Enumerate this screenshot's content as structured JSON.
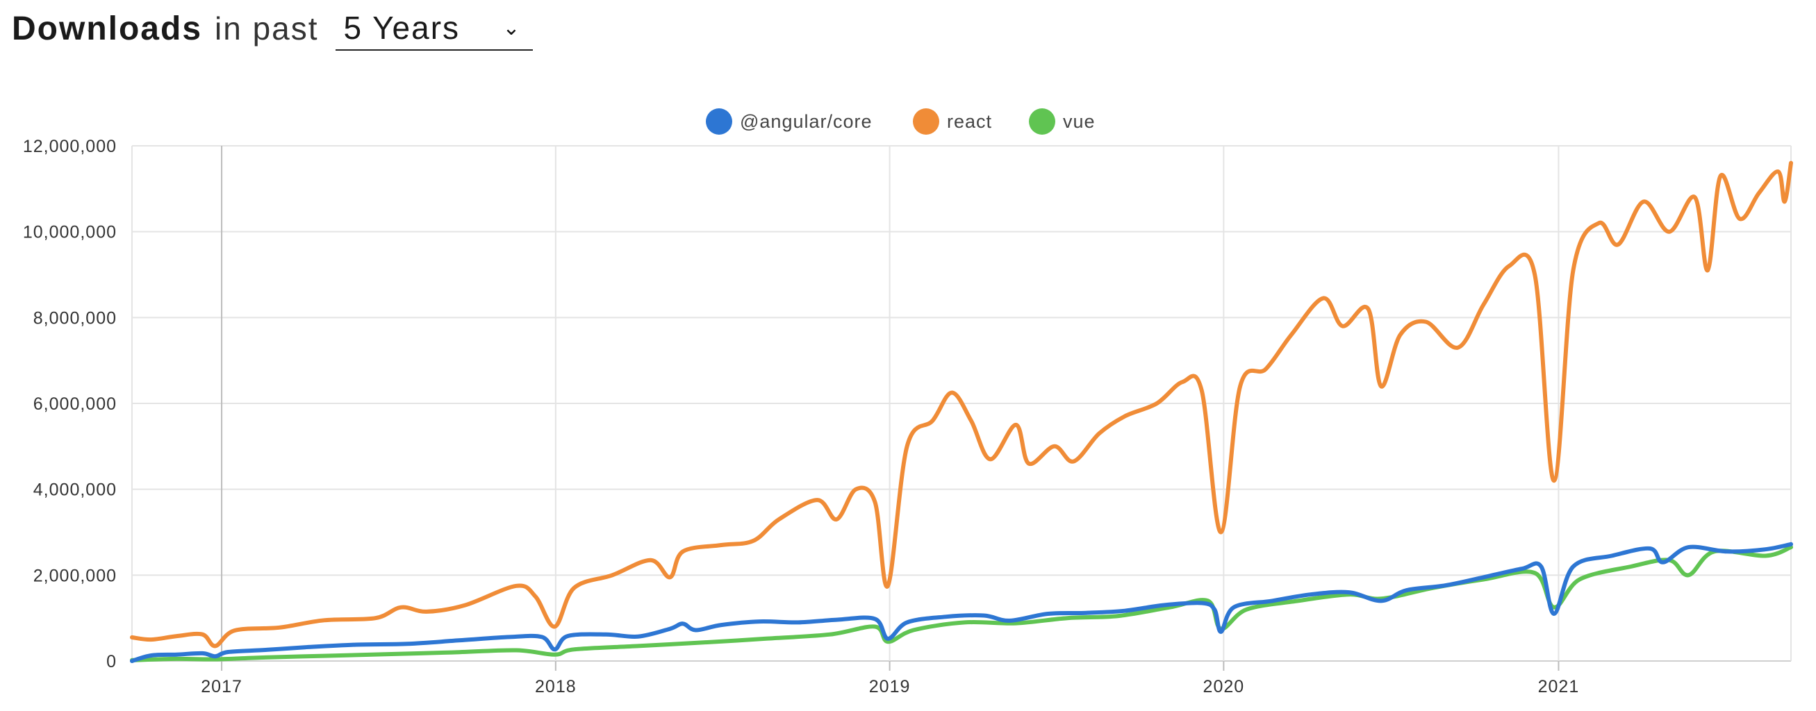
{
  "header": {
    "title": "Downloads",
    "subtitle": "in past",
    "period_selected": "5 Years"
  },
  "chart_data": {
    "type": "line",
    "title": "",
    "xlabel": "",
    "ylabel": "",
    "x_range": [
      "2016-09-25",
      "2021-09-12"
    ],
    "ylim": [
      0,
      12000000
    ],
    "y_ticks": [
      0,
      2000000,
      4000000,
      6000000,
      8000000,
      10000000,
      12000000
    ],
    "y_tick_labels": [
      "0",
      "2,000,000",
      "4,000,000",
      "6,000,000",
      "8,000,000",
      "10,000,000",
      "12,000,000"
    ],
    "x_tick_labels": [
      "2017",
      "2018",
      "2019",
      "2020",
      "2021"
    ],
    "x_tick_dates": [
      "2017-01-01",
      "2018-01-01",
      "2019-01-01",
      "2020-01-01",
      "2021-01-01"
    ],
    "grid": true,
    "legend_position": "top-center",
    "series": [
      {
        "name": "@angular/core",
        "color": "#2d76d3",
        "points": [
          [
            "2016-09-25",
            0
          ],
          [
            "2016-10-16",
            130000
          ],
          [
            "2016-11-13",
            150000
          ],
          [
            "2016-12-11",
            180000
          ],
          [
            "2016-12-25",
            110000
          ],
          [
            "2017-01-08",
            210000
          ],
          [
            "2017-02-19",
            260000
          ],
          [
            "2017-04-02",
            320000
          ],
          [
            "2017-05-28",
            380000
          ],
          [
            "2017-07-23",
            400000
          ],
          [
            "2017-09-17",
            480000
          ],
          [
            "2017-11-12",
            560000
          ],
          [
            "2017-12-17",
            560000
          ],
          [
            "2017-12-31",
            270000
          ],
          [
            "2018-01-14",
            580000
          ],
          [
            "2018-02-25",
            620000
          ],
          [
            "2018-04-01",
            570000
          ],
          [
            "2018-05-06",
            750000
          ],
          [
            "2018-05-20",
            870000
          ],
          [
            "2018-06-03",
            720000
          ],
          [
            "2018-07-01",
            840000
          ],
          [
            "2018-08-12",
            920000
          ],
          [
            "2018-09-23",
            900000
          ],
          [
            "2018-11-04",
            960000
          ],
          [
            "2018-12-16",
            980000
          ],
          [
            "2018-12-30",
            520000
          ],
          [
            "2019-01-20",
            900000
          ],
          [
            "2019-03-03",
            1030000
          ],
          [
            "2019-04-14",
            1060000
          ],
          [
            "2019-05-12",
            940000
          ],
          [
            "2019-06-23",
            1100000
          ],
          [
            "2019-08-04",
            1120000
          ],
          [
            "2019-09-15",
            1170000
          ],
          [
            "2019-10-27",
            1300000
          ],
          [
            "2019-12-08",
            1350000
          ],
          [
            "2019-12-22",
            1200000
          ],
          [
            "2019-12-29",
            680000
          ],
          [
            "2020-01-12",
            1250000
          ],
          [
            "2020-02-23",
            1400000
          ],
          [
            "2020-04-05",
            1550000
          ],
          [
            "2020-05-17",
            1600000
          ],
          [
            "2020-06-21",
            1400000
          ],
          [
            "2020-07-19",
            1650000
          ],
          [
            "2020-08-30",
            1760000
          ],
          [
            "2020-10-11",
            1950000
          ],
          [
            "2020-11-22",
            2150000
          ],
          [
            "2020-12-13",
            2200000
          ],
          [
            "2020-12-27",
            1100000
          ],
          [
            "2021-01-17",
            2200000
          ],
          [
            "2021-02-28",
            2450000
          ],
          [
            "2021-04-11",
            2620000
          ],
          [
            "2021-04-25",
            2300000
          ],
          [
            "2021-05-23",
            2650000
          ],
          [
            "2021-07-04",
            2550000
          ],
          [
            "2021-08-15",
            2600000
          ],
          [
            "2021-09-12",
            2720000
          ]
        ]
      },
      {
        "name": "react",
        "color": "#f08c37",
        "points": [
          [
            "2016-09-25",
            550000
          ],
          [
            "2016-10-16",
            500000
          ],
          [
            "2016-11-13",
            580000
          ],
          [
            "2016-12-11",
            620000
          ],
          [
            "2016-12-25",
            350000
          ],
          [
            "2017-01-15",
            710000
          ],
          [
            "2017-03-05",
            780000
          ],
          [
            "2017-04-23",
            950000
          ],
          [
            "2017-06-18",
            1000000
          ],
          [
            "2017-07-16",
            1250000
          ],
          [
            "2017-08-13",
            1150000
          ],
          [
            "2017-09-24",
            1300000
          ],
          [
            "2017-11-19",
            1750000
          ],
          [
            "2017-12-10",
            1500000
          ],
          [
            "2017-12-31",
            800000
          ],
          [
            "2018-01-21",
            1700000
          ],
          [
            "2018-03-04",
            2000000
          ],
          [
            "2018-04-15",
            2350000
          ],
          [
            "2018-05-06",
            1950000
          ],
          [
            "2018-05-20",
            2550000
          ],
          [
            "2018-07-01",
            2700000
          ],
          [
            "2018-08-05",
            2800000
          ],
          [
            "2018-09-02",
            3300000
          ],
          [
            "2018-10-14",
            3750000
          ],
          [
            "2018-11-04",
            3300000
          ],
          [
            "2018-11-25",
            4000000
          ],
          [
            "2018-12-16",
            3700000
          ],
          [
            "2018-12-30",
            1750000
          ],
          [
            "2019-01-20",
            5000000
          ],
          [
            "2019-02-17",
            5600000
          ],
          [
            "2019-03-10",
            6250000
          ],
          [
            "2019-03-31",
            5600000
          ],
          [
            "2019-04-21",
            4700000
          ],
          [
            "2019-05-19",
            5500000
          ],
          [
            "2019-06-02",
            4600000
          ],
          [
            "2019-06-30",
            5000000
          ],
          [
            "2019-07-21",
            4650000
          ],
          [
            "2019-08-18",
            5300000
          ],
          [
            "2019-09-15",
            5700000
          ],
          [
            "2019-10-20",
            6000000
          ],
          [
            "2019-11-17",
            6500000
          ],
          [
            "2019-12-08",
            6300000
          ],
          [
            "2019-12-29",
            3000000
          ],
          [
            "2020-01-19",
            6400000
          ],
          [
            "2020-02-16",
            6800000
          ],
          [
            "2020-03-15",
            7600000
          ],
          [
            "2020-04-19",
            8450000
          ],
          [
            "2020-05-10",
            7800000
          ],
          [
            "2020-06-07",
            8200000
          ],
          [
            "2020-06-21",
            6400000
          ],
          [
            "2020-07-12",
            7600000
          ],
          [
            "2020-08-09",
            7900000
          ],
          [
            "2020-09-13",
            7300000
          ],
          [
            "2020-10-11",
            8300000
          ],
          [
            "2020-11-08",
            9200000
          ],
          [
            "2020-12-06",
            9000000
          ],
          [
            "2020-12-27",
            4200000
          ],
          [
            "2021-01-17",
            9100000
          ],
          [
            "2021-02-14",
            10200000
          ],
          [
            "2021-03-07",
            9700000
          ],
          [
            "2021-04-04",
            10700000
          ],
          [
            "2021-05-02",
            10000000
          ],
          [
            "2021-05-30",
            10800000
          ],
          [
            "2021-06-13",
            9100000
          ],
          [
            "2021-06-27",
            11300000
          ],
          [
            "2021-07-18",
            10300000
          ],
          [
            "2021-08-08",
            10900000
          ],
          [
            "2021-08-29",
            11400000
          ],
          [
            "2021-09-05",
            10700000
          ],
          [
            "2021-09-12",
            11600000
          ]
        ]
      },
      {
        "name": "vue",
        "color": "#60c452",
        "points": [
          [
            "2016-09-25",
            20000
          ],
          [
            "2016-11-13",
            50000
          ],
          [
            "2016-12-25",
            40000
          ],
          [
            "2017-02-12",
            80000
          ],
          [
            "2017-04-23",
            120000
          ],
          [
            "2017-07-02",
            160000
          ],
          [
            "2017-09-10",
            200000
          ],
          [
            "2017-11-19",
            250000
          ],
          [
            "2017-12-31",
            150000
          ],
          [
            "2018-01-21",
            270000
          ],
          [
            "2018-04-01",
            350000
          ],
          [
            "2018-06-10",
            430000
          ],
          [
            "2018-08-19",
            520000
          ],
          [
            "2018-10-28",
            620000
          ],
          [
            "2018-12-16",
            800000
          ],
          [
            "2018-12-30",
            450000
          ],
          [
            "2019-01-27",
            720000
          ],
          [
            "2019-03-24",
            900000
          ],
          [
            "2019-05-19",
            880000
          ],
          [
            "2019-07-14",
            1000000
          ],
          [
            "2019-09-08",
            1050000
          ],
          [
            "2019-11-03",
            1250000
          ],
          [
            "2019-12-15",
            1400000
          ],
          [
            "2019-12-29",
            750000
          ],
          [
            "2020-01-26",
            1200000
          ],
          [
            "2020-03-22",
            1400000
          ],
          [
            "2020-05-17",
            1550000
          ],
          [
            "2020-06-21",
            1450000
          ],
          [
            "2020-08-16",
            1700000
          ],
          [
            "2020-10-11",
            1900000
          ],
          [
            "2020-12-06",
            2050000
          ],
          [
            "2020-12-27",
            1250000
          ],
          [
            "2021-01-24",
            1900000
          ],
          [
            "2021-03-21",
            2200000
          ],
          [
            "2021-05-02",
            2350000
          ],
          [
            "2021-05-23",
            2000000
          ],
          [
            "2021-06-20",
            2550000
          ],
          [
            "2021-08-15",
            2450000
          ],
          [
            "2021-09-12",
            2650000
          ]
        ]
      }
    ]
  }
}
